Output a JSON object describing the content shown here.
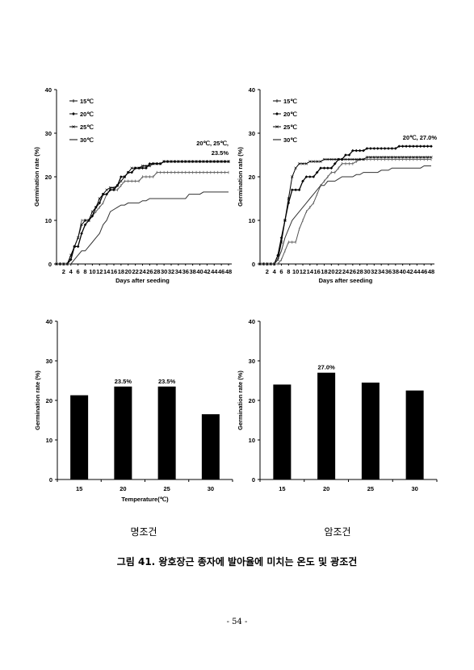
{
  "chart_data": [
    {
      "type": "line",
      "panel": "top-left",
      "xlabel": "Days after seeding",
      "ylabel": "Germination rate (%)",
      "ylim": [
        0,
        40
      ],
      "yticks": [
        0,
        10,
        20,
        30,
        40
      ],
      "xticks": [
        2,
        4,
        6,
        8,
        10,
        12,
        14,
        16,
        18,
        20,
        22,
        24,
        26,
        28,
        30,
        32,
        34,
        36,
        38,
        40,
        42,
        44,
        46,
        48
      ],
      "annotation": [
        "20℃, 25℃,",
        "23.5%"
      ],
      "series": [
        {
          "name": "15℃",
          "marker": "dash",
          "x": [
            0,
            1,
            2,
            3,
            4,
            5,
            6,
            7,
            8,
            9,
            10,
            11,
            12,
            13,
            14,
            15,
            16,
            17,
            18,
            19,
            20,
            21,
            22,
            23,
            24,
            25,
            26,
            27,
            28,
            29,
            30,
            31,
            32,
            33,
            34,
            35,
            36,
            37,
            38,
            39,
            40,
            41,
            42,
            43,
            44,
            45,
            46,
            47,
            48
          ],
          "y": [
            0,
            0,
            0,
            0,
            2,
            4,
            6,
            10,
            10,
            10,
            11,
            12,
            13,
            14,
            16,
            17,
            17,
            17,
            18,
            19,
            19,
            19,
            19,
            19,
            20,
            20,
            20,
            20,
            21,
            21,
            21,
            21,
            21,
            21,
            21,
            21,
            21,
            21,
            21,
            21,
            21,
            21,
            21,
            21,
            21,
            21,
            21,
            21,
            21
          ]
        },
        {
          "name": "20℃",
          "marker": "diamond",
          "x": [
            0,
            1,
            2,
            3,
            4,
            5,
            6,
            7,
            8,
            9,
            10,
            11,
            12,
            13,
            14,
            15,
            16,
            17,
            18,
            19,
            20,
            21,
            22,
            23,
            24,
            25,
            26,
            27,
            28,
            29,
            30,
            31,
            32,
            33,
            34,
            35,
            36,
            37,
            38,
            39,
            40,
            41,
            42,
            43,
            44,
            45,
            46,
            47,
            48
          ],
          "y": [
            0,
            0,
            0,
            0,
            1,
            4,
            4,
            7,
            9,
            10,
            11,
            13,
            14,
            16,
            16,
            17,
            17,
            18,
            20,
            20,
            21,
            21,
            22,
            22,
            22,
            22,
            23,
            23,
            23,
            23,
            23.5,
            23.5,
            23.5,
            23.5,
            23.5,
            23.5,
            23.5,
            23.5,
            23.5,
            23.5,
            23.5,
            23.5,
            23.5,
            23.5,
            23.5,
            23.5,
            23.5,
            23.5,
            23.5
          ]
        },
        {
          "name": "25℃",
          "marker": "x",
          "x": [
            0,
            1,
            2,
            3,
            4,
            5,
            6,
            7,
            8,
            9,
            10,
            11,
            12,
            13,
            14,
            15,
            16,
            17,
            18,
            19,
            20,
            21,
            22,
            23,
            24,
            25,
            26,
            27,
            28,
            29,
            30,
            31,
            32,
            33,
            34,
            35,
            36,
            37,
            38,
            39,
            40,
            41,
            42,
            43,
            44,
            45,
            46,
            47,
            48
          ],
          "y": [
            0,
            0,
            0,
            0,
            2,
            4,
            6,
            9,
            10,
            10,
            12,
            13,
            15,
            16,
            17,
            17.5,
            17.5,
            18,
            19,
            20,
            21,
            22,
            22,
            22,
            22.5,
            22.5,
            22.5,
            23,
            23,
            23,
            23.5,
            23.5,
            23.5,
            23.5,
            23.5,
            23.5,
            23.5,
            23.5,
            23.5,
            23.5,
            23.5,
            23.5,
            23.5,
            23.5,
            23.5,
            23.5,
            23.5,
            23.5,
            23.5
          ]
        },
        {
          "name": "30℃",
          "marker": "none",
          "x": [
            0,
            1,
            2,
            3,
            4,
            5,
            6,
            7,
            8,
            9,
            10,
            11,
            12,
            13,
            14,
            15,
            16,
            17,
            18,
            19,
            20,
            21,
            22,
            23,
            24,
            25,
            26,
            27,
            28,
            29,
            30,
            31,
            32,
            33,
            34,
            35,
            36,
            37,
            38,
            39,
            40,
            41,
            42,
            43,
            44,
            45,
            46,
            47,
            48
          ],
          "y": [
            0,
            0,
            0,
            0,
            0,
            1,
            2,
            3,
            3,
            4,
            5,
            6,
            7,
            9,
            10,
            12,
            12.5,
            13,
            13.5,
            13.5,
            14,
            14,
            14,
            14,
            14.5,
            14.5,
            15,
            15,
            15,
            15,
            15,
            15,
            15,
            15,
            15,
            15,
            15,
            16,
            16,
            16,
            16,
            16.5,
            16.5,
            16.5,
            16.5,
            16.5,
            16.5,
            16.5,
            16.5
          ]
        }
      ]
    },
    {
      "type": "line",
      "panel": "top-right",
      "xlabel": "Days after seeding",
      "ylabel": "Germination rate (%)",
      "ylim": [
        0,
        40
      ],
      "yticks": [
        0,
        10,
        20,
        30,
        40
      ],
      "xticks": [
        2,
        4,
        6,
        8,
        10,
        12,
        14,
        16,
        18,
        20,
        22,
        24,
        26,
        28,
        30,
        32,
        34,
        36,
        38,
        40,
        42,
        44,
        46,
        48
      ],
      "annotation": [
        "20℃, 27.0%"
      ],
      "series": [
        {
          "name": "15℃",
          "marker": "dash",
          "x": [
            0,
            1,
            2,
            3,
            4,
            5,
            6,
            7,
            8,
            9,
            10,
            11,
            12,
            13,
            14,
            15,
            16,
            17,
            18,
            19,
            20,
            21,
            22,
            23,
            24,
            25,
            26,
            27,
            28,
            29,
            30,
            31,
            32,
            33,
            34,
            35,
            36,
            37,
            38,
            39,
            40,
            41,
            42,
            43,
            44,
            45,
            46,
            47,
            48
          ],
          "y": [
            0,
            0,
            0,
            0,
            0,
            0,
            1,
            3,
            5,
            5,
            5,
            8,
            10,
            12,
            13,
            14,
            16,
            18,
            19,
            20,
            21,
            21,
            22,
            23,
            23,
            23,
            23,
            23.5,
            24,
            24,
            24,
            24,
            24,
            24,
            24,
            24,
            24,
            24,
            24,
            24,
            24,
            24,
            24,
            24,
            24,
            24,
            24,
            24,
            24
          ]
        },
        {
          "name": "20℃",
          "marker": "diamond",
          "x": [
            0,
            1,
            2,
            3,
            4,
            5,
            6,
            7,
            8,
            9,
            10,
            11,
            12,
            13,
            14,
            15,
            16,
            17,
            18,
            19,
            20,
            21,
            22,
            23,
            24,
            25,
            26,
            27,
            28,
            29,
            30,
            31,
            32,
            33,
            34,
            35,
            36,
            37,
            38,
            39,
            40,
            41,
            42,
            43,
            44,
            45,
            46,
            47,
            48
          ],
          "y": [
            0,
            0,
            0,
            0,
            0,
            2,
            6,
            10,
            14,
            17,
            17,
            17,
            19,
            20,
            20,
            20,
            21,
            22,
            22,
            22,
            22,
            23,
            24,
            24,
            25,
            25,
            26,
            26,
            26,
            26,
            26.5,
            26.5,
            26.5,
            26.5,
            26.5,
            26.5,
            26.5,
            26.5,
            26.5,
            27,
            27,
            27,
            27,
            27,
            27,
            27,
            27,
            27,
            27
          ]
        },
        {
          "name": "25℃",
          "marker": "x",
          "x": [
            0,
            1,
            2,
            3,
            4,
            5,
            6,
            7,
            8,
            9,
            10,
            11,
            12,
            13,
            14,
            15,
            16,
            17,
            18,
            19,
            20,
            21,
            22,
            23,
            24,
            25,
            26,
            27,
            28,
            29,
            30,
            31,
            32,
            33,
            34,
            35,
            36,
            37,
            38,
            39,
            40,
            41,
            42,
            43,
            44,
            45,
            46,
            47,
            48
          ],
          "y": [
            0,
            0,
            0,
            0,
            0,
            1,
            5,
            10,
            15,
            20,
            22,
            23,
            23,
            23,
            23.5,
            23.5,
            23.5,
            23.5,
            24,
            24,
            24,
            24,
            24,
            24,
            24,
            24,
            24,
            24,
            24,
            24,
            24.5,
            24.5,
            24.5,
            24.5,
            24.5,
            24.5,
            24.5,
            24.5,
            24.5,
            24.5,
            24.5,
            24.5,
            24.5,
            24.5,
            24.5,
            24.5,
            24.5,
            24.5,
            24.5
          ]
        },
        {
          "name": "30℃",
          "marker": "none",
          "x": [
            0,
            1,
            2,
            3,
            4,
            5,
            6,
            7,
            8,
            9,
            10,
            11,
            12,
            13,
            14,
            15,
            16,
            17,
            18,
            19,
            20,
            21,
            22,
            23,
            24,
            25,
            26,
            27,
            28,
            29,
            30,
            31,
            32,
            33,
            34,
            35,
            36,
            37,
            38,
            39,
            40,
            41,
            42,
            43,
            44,
            45,
            46,
            47,
            48
          ],
          "y": [
            0,
            0,
            0,
            0,
            0,
            1,
            3,
            6,
            8,
            10,
            11,
            12,
            13,
            14,
            15,
            16,
            17,
            18,
            18,
            19,
            19,
            19,
            19.5,
            20,
            20,
            20,
            20,
            20.5,
            20.5,
            21,
            21,
            21,
            21,
            21,
            21.5,
            21.5,
            21.5,
            22,
            22,
            22,
            22,
            22,
            22,
            22,
            22,
            22,
            22.5,
            22.5,
            22.5
          ]
        }
      ]
    },
    {
      "type": "bar",
      "panel": "bottom-left",
      "categories": [
        "15",
        "20",
        "25",
        "30"
      ],
      "values": [
        21.3,
        23.5,
        23.5,
        16.5
      ],
      "bar_labels": [
        "",
        "23.5%",
        "23.5%",
        ""
      ],
      "xlabel": "Temperature(℃)",
      "ylabel": "Germination rate (%)",
      "ylim": [
        0,
        40
      ],
      "yticks": [
        0,
        10,
        20,
        30,
        40
      ]
    },
    {
      "type": "bar",
      "panel": "bottom-right",
      "categories": [
        "15",
        "20",
        "25",
        "30"
      ],
      "values": [
        24.0,
        27.0,
        24.5,
        22.5
      ],
      "bar_labels": [
        "",
        "27.0%",
        "",
        ""
      ],
      "xlabel": "",
      "ylabel": "Germination rate (%)",
      "ylim": [
        0,
        40
      ],
      "yticks": [
        0,
        10,
        20,
        30,
        40
      ]
    }
  ],
  "labels": {
    "left_condition": "명조건",
    "right_condition": "암조건",
    "caption": "그림 41. 왕호장근 종자에 발아율에 미치는 온도 및 광조건",
    "page_number": "- 54 -"
  }
}
